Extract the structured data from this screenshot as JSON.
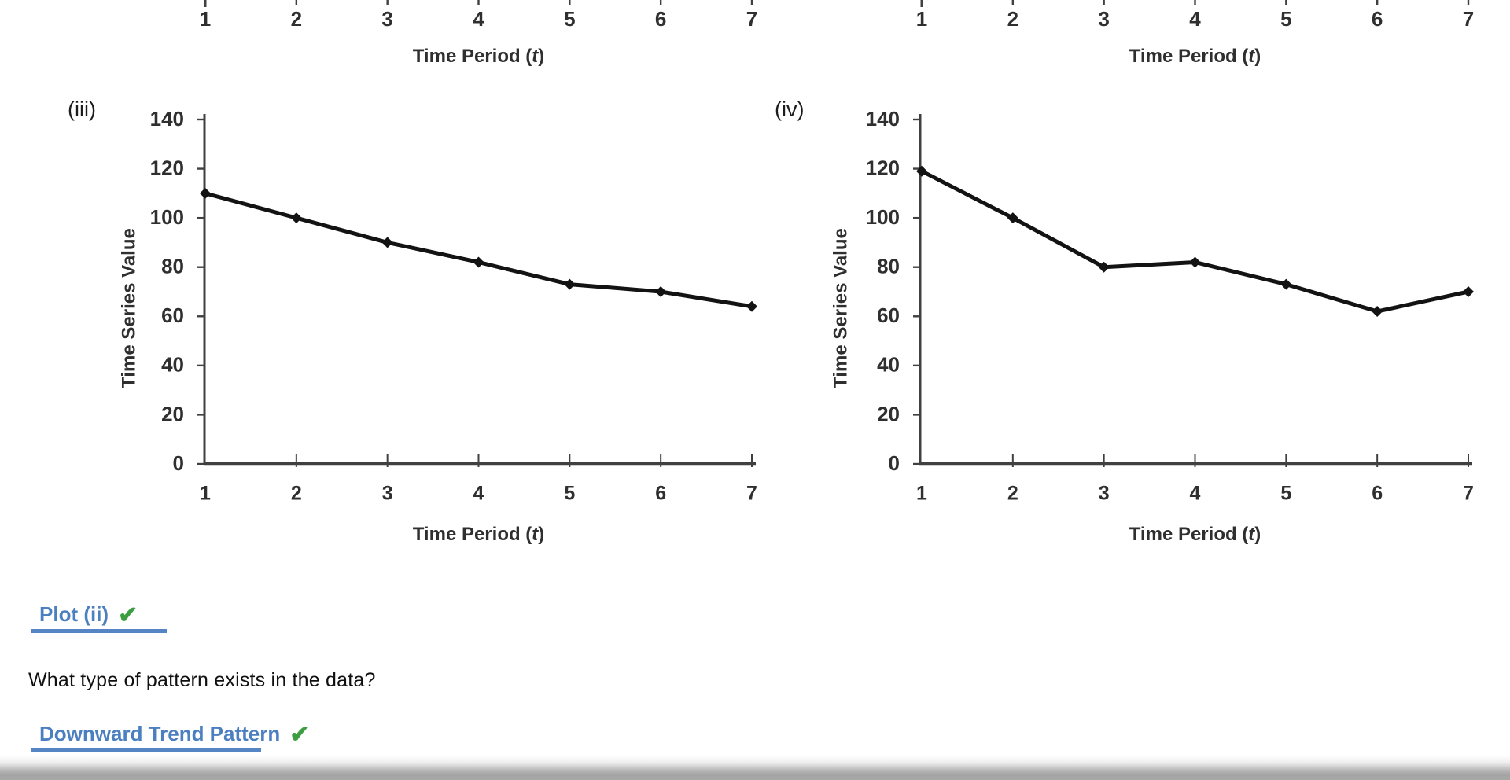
{
  "colors": {
    "answer_blue": "#4c7fc0",
    "underline_blue": "#5585c4",
    "check_green": "#3c9e40",
    "series_color": "#131313",
    "axis_color": "#404040",
    "chart_text_color": "#2f2f2f"
  },
  "top_axes": [
    {
      "ticks": [
        "1",
        "2",
        "3",
        "4",
        "5",
        "6",
        "7"
      ],
      "xlabel": "Time Period (t)",
      "xlabel_prefix": "Time Period (",
      "xlabel_italic": "t",
      "xlabel_suffix": ")"
    },
    {
      "ticks": [
        "1",
        "2",
        "3",
        "4",
        "5",
        "6",
        "7"
      ],
      "xlabel": "Time Period (t)",
      "xlabel_prefix": "Time Period (",
      "xlabel_italic": "t",
      "xlabel_suffix": ")"
    }
  ],
  "chart_data": [
    {
      "type": "line",
      "panel_label": "(iii)",
      "x": [
        1,
        2,
        3,
        4,
        5,
        6,
        7
      ],
      "values": [
        110,
        100,
        90,
        82,
        73,
        70,
        64
      ],
      "xticklabels": [
        "1",
        "2",
        "3",
        "4",
        "5",
        "6",
        "7"
      ],
      "yticks": [
        0,
        20,
        40,
        60,
        80,
        100,
        120,
        140
      ],
      "ylim": [
        0,
        140
      ],
      "xlabel": "Time Period (t)",
      "xlabel_prefix": "Time Period (",
      "xlabel_italic": "t",
      "xlabel_suffix": ")",
      "ylabel": "Time Series Value",
      "grid": false,
      "legend": "none",
      "marker": "diamond"
    },
    {
      "type": "line",
      "panel_label": "(iv)",
      "x": [
        1,
        2,
        3,
        4,
        5,
        6,
        7
      ],
      "values": [
        119,
        100,
        80,
        82,
        73,
        62,
        70
      ],
      "xticklabels": [
        "1",
        "2",
        "3",
        "4",
        "5",
        "6",
        "7"
      ],
      "yticks": [
        0,
        20,
        40,
        60,
        80,
        100,
        120,
        140
      ],
      "ylim": [
        0,
        140
      ],
      "xlabel": "Time Period (t)",
      "xlabel_prefix": "Time Period (",
      "xlabel_italic": "t",
      "xlabel_suffix": ")",
      "ylabel": "Time Series Value",
      "grid": false,
      "legend": "none",
      "marker": "diamond"
    }
  ],
  "answers": {
    "plot_label": "Plot (ii)",
    "plot_check": "✔",
    "question": "What type of pattern exists in the data?",
    "pattern_label": "Downward Trend Pattern",
    "pattern_check": "✔"
  }
}
